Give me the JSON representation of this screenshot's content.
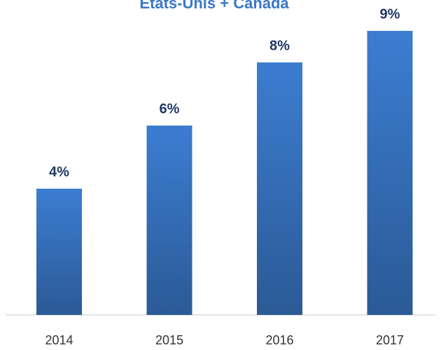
{
  "chart_data": {
    "type": "bar",
    "title": "Etats-Unis  + Canada",
    "categories": [
      "2014",
      "2015",
      "2016",
      "2017"
    ],
    "values": [
      4,
      6,
      8,
      9
    ],
    "value_labels": [
      "4%",
      "6%",
      "8%",
      "9%"
    ],
    "color": "#3c7dd1"
  }
}
